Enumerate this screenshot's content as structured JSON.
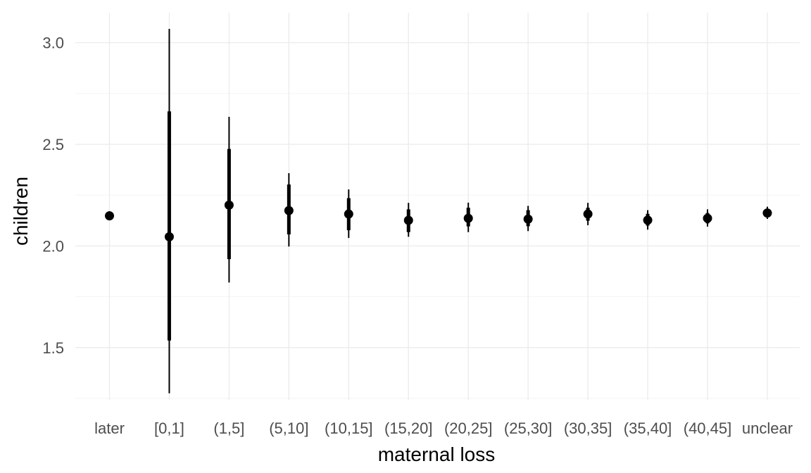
{
  "chart_data": {
    "type": "pointrange",
    "title": "",
    "xlabel": "maternal loss",
    "ylabel": "children",
    "categories": [
      "later",
      "[0,1]",
      "(1,5]",
      "(5,10]",
      "(10,15]",
      "(15,20]",
      "(20,25]",
      "(25,30]",
      "(30,35]",
      "(35,40]",
      "(40,45]",
      "unclear"
    ],
    "estimates": [
      2.148,
      2.045,
      2.201,
      2.174,
      2.157,
      2.126,
      2.136,
      2.132,
      2.157,
      2.127,
      2.136,
      2.162
    ],
    "inner_interval": [
      [
        2.138,
        2.158
      ],
      [
        1.535,
        2.662
      ],
      [
        1.935,
        2.477
      ],
      [
        2.057,
        2.302
      ],
      [
        2.077,
        2.235
      ],
      [
        2.068,
        2.18
      ],
      [
        2.096,
        2.188
      ],
      [
        2.097,
        2.176
      ],
      [
        2.124,
        2.188
      ],
      [
        2.1,
        2.158
      ],
      [
        2.111,
        2.162
      ],
      [
        2.148,
        2.178
      ]
    ],
    "outer_interval": [
      [
        2.127,
        2.171
      ],
      [
        1.275,
        3.068
      ],
      [
        1.82,
        2.635
      ],
      [
        1.997,
        2.358
      ],
      [
        2.039,
        2.278
      ],
      [
        2.045,
        2.212
      ],
      [
        2.068,
        2.213
      ],
      [
        2.073,
        2.197
      ],
      [
        2.102,
        2.212
      ],
      [
        2.08,
        2.176
      ],
      [
        2.095,
        2.18
      ],
      [
        2.133,
        2.193
      ]
    ],
    "y_ticks": [
      "1.5",
      "2.0",
      "2.5",
      "3.0"
    ],
    "ylim": [
      1.2,
      3.15
    ],
    "grid": true,
    "legend": "none"
  }
}
